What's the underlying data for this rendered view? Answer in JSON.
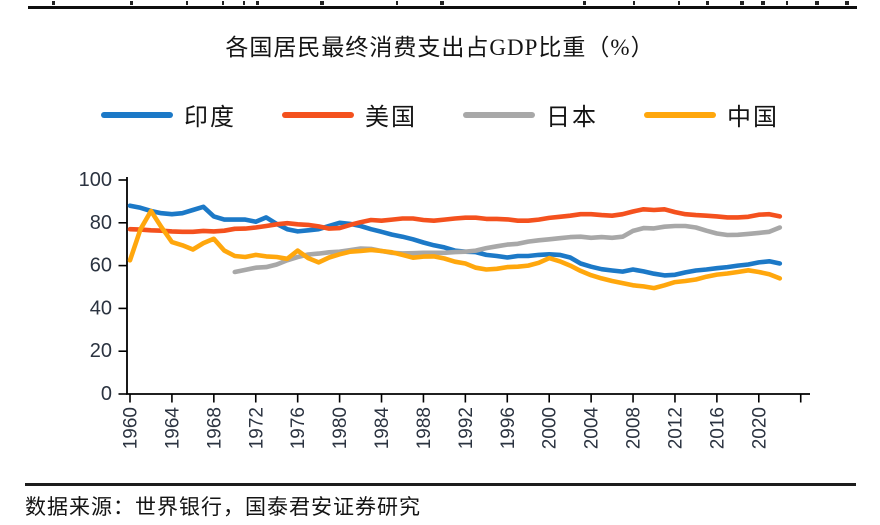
{
  "title": "各国居民最终消费支出占GDP比重（%）",
  "source": "数据来源：世界银行，国泰君安证券研究",
  "chart_data": {
    "type": "line",
    "title": "各国居民最终消费支出占GDP比重（%）",
    "xlabel": "",
    "ylabel": "",
    "ylim": [
      0,
      100
    ],
    "y_ticks": [
      0,
      20,
      40,
      60,
      80,
      100
    ],
    "x_range": [
      1960,
      2024
    ],
    "x_tick_step": 4,
    "x_label_ticks": [
      1960,
      1964,
      1968,
      1972,
      1976,
      1980,
      1984,
      1988,
      1992,
      1996,
      2000,
      2004,
      2008,
      2012,
      2016,
      2020
    ],
    "grid": false,
    "legend_position": "top",
    "axis_color": "#000000",
    "label_color": "#2b3340",
    "series": [
      {
        "name": "印度",
        "color": "#1C79C7",
        "start_year": 1960,
        "values": [
          88,
          87,
          85.5,
          84.5,
          84,
          84.5,
          86,
          87.5,
          83,
          81.5,
          81.5,
          81.5,
          80.5,
          82.5,
          79.5,
          77,
          76,
          76.5,
          77,
          78.5,
          80,
          79.5,
          78.5,
          77,
          75.8,
          74.5,
          73.5,
          72.3,
          70.8,
          69.5,
          68.5,
          67,
          66.5,
          66.3,
          65,
          64.5,
          63.8,
          64.5,
          64.5,
          65,
          65.3,
          65,
          63.8,
          61,
          59.5,
          58.3,
          57.7,
          57.2,
          58.2,
          57.3,
          56.2,
          55.4,
          55.7,
          56.8,
          57.7,
          58.2,
          58.8,
          59.3,
          60,
          60.5,
          61.5,
          62,
          61
        ]
      },
      {
        "name": "美国",
        "color": "#F4511E",
        "start_year": 1960,
        "values": [
          77,
          76.8,
          76.5,
          76.3,
          76,
          75.8,
          75.8,
          76.2,
          76,
          76.3,
          77.2,
          77.3,
          77.8,
          78.5,
          79.3,
          79.8,
          79.3,
          79,
          78.3,
          77.3,
          77.5,
          79,
          80.3,
          81.3,
          81,
          81.5,
          82,
          82,
          81.3,
          81,
          81.5,
          82,
          82.4,
          82.4,
          81.8,
          81.8,
          81.6,
          81,
          81,
          81.5,
          82.3,
          82.8,
          83.3,
          84,
          84,
          83.6,
          83.3,
          84,
          85.3,
          86.3,
          86,
          86.3,
          85,
          84,
          83.6,
          83.3,
          83,
          82.5,
          82.5,
          82.8,
          83.8,
          84,
          83
        ]
      },
      {
        "name": "日本",
        "color": "#A8A8A8",
        "start_year": 1970,
        "values": [
          57,
          58,
          59,
          59.3,
          60.5,
          62.5,
          64,
          65.2,
          65.6,
          66.2,
          66.5,
          67.2,
          68,
          67.8,
          66.8,
          66,
          65.7,
          65.8,
          66,
          66,
          66,
          66.3,
          66.5,
          67,
          68.2,
          69,
          69.8,
          70.2,
          71.2,
          71.8,
          72.3,
          72.8,
          73.3,
          73.5,
          73,
          73.3,
          73,
          73.5,
          76.2,
          77.5,
          77.4,
          78.2,
          78.5,
          78.5,
          77.8,
          76.3,
          75,
          74.3,
          74.4,
          74.8,
          75.3,
          75.8,
          77.8
        ]
      },
      {
        "name": "中国",
        "color": "#FFA70D",
        "start_year": 1960,
        "values": [
          62.5,
          77,
          85.5,
          78,
          71,
          69.5,
          67.5,
          70.5,
          72.5,
          67,
          64.5,
          64,
          65,
          64.3,
          64,
          63.2,
          67,
          63.5,
          61.5,
          63.8,
          65.3,
          66.5,
          66.8,
          67.3,
          66.8,
          66.2,
          65,
          63.7,
          64.2,
          64.3,
          63.3,
          61.8,
          61,
          59,
          58.2,
          58.5,
          59.3,
          59.5,
          60,
          61.3,
          63.5,
          62,
          60,
          57.5,
          55.5,
          54,
          52.8,
          51.8,
          50.8,
          50.3,
          49.5,
          50.8,
          52.3,
          52.8,
          53.5,
          54.8,
          55.8,
          56.3,
          57,
          57.8,
          57,
          56,
          54
        ]
      }
    ]
  }
}
